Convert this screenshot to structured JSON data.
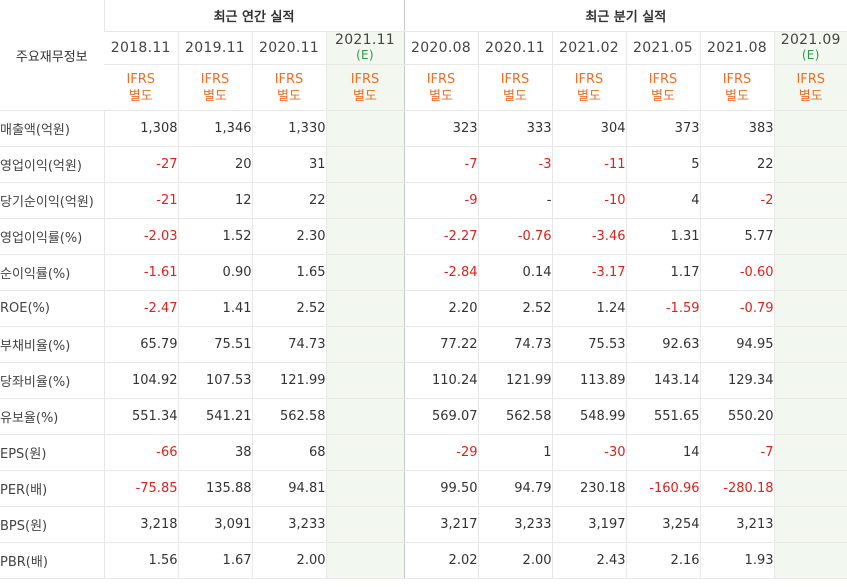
{
  "header": {
    "row_head": "주요재무정보",
    "annual_group": "최근 연간 실적",
    "quarter_group": "최근 분기 실적",
    "ifrs_line1": "IFRS",
    "ifrs_line2": "별도"
  },
  "columns": [
    {
      "period": "2018.11",
      "estimate": false
    },
    {
      "period": "2019.11",
      "estimate": false
    },
    {
      "period": "2020.11",
      "estimate": false
    },
    {
      "period": "2021.11",
      "estimate": true,
      "est_label": "(E)"
    },
    {
      "period": "2020.08",
      "estimate": false
    },
    {
      "period": "2020.11",
      "estimate": false
    },
    {
      "period": "2021.02",
      "estimate": false
    },
    {
      "period": "2021.05",
      "estimate": false
    },
    {
      "period": "2021.08",
      "estimate": false
    },
    {
      "period": "2021.09",
      "estimate": true,
      "est_label": "(E)"
    }
  ],
  "rows": [
    {
      "label": "매출액(억원)",
      "values": [
        "1,308",
        "1,346",
        "1,330",
        "",
        "323",
        "333",
        "304",
        "373",
        "383",
        ""
      ]
    },
    {
      "label": "영업이익(억원)",
      "values": [
        "-27",
        "20",
        "31",
        "",
        "-7",
        "-3",
        "-11",
        "5",
        "22",
        ""
      ]
    },
    {
      "label": "당기순이익(억원)",
      "values": [
        "-21",
        "12",
        "22",
        "",
        "-9",
        "-",
        "-10",
        "4",
        "-2",
        ""
      ]
    },
    {
      "label": "영업이익률(%)",
      "values": [
        "-2.03",
        "1.52",
        "2.30",
        "",
        "-2.27",
        "-0.76",
        "-3.46",
        "1.31",
        "5.77",
        ""
      ]
    },
    {
      "label": "순이익률(%)",
      "values": [
        "-1.61",
        "0.90",
        "1.65",
        "",
        "-2.84",
        "0.14",
        "-3.17",
        "1.17",
        "-0.60",
        ""
      ]
    },
    {
      "label": "ROE(%)",
      "values": [
        "-2.47",
        "1.41",
        "2.52",
        "",
        "2.20",
        "2.52",
        "1.24",
        "-1.59",
        "-0.79",
        ""
      ]
    },
    {
      "label": "부채비율(%)",
      "values": [
        "65.79",
        "75.51",
        "74.73",
        "",
        "77.22",
        "74.73",
        "75.53",
        "92.63",
        "94.95",
        ""
      ]
    },
    {
      "label": "당좌비율(%)",
      "values": [
        "104.92",
        "107.53",
        "121.99",
        "",
        "110.24",
        "121.99",
        "113.89",
        "143.14",
        "129.34",
        ""
      ]
    },
    {
      "label": "유보율(%)",
      "values": [
        "551.34",
        "541.21",
        "562.58",
        "",
        "569.07",
        "562.58",
        "548.99",
        "551.65",
        "550.20",
        ""
      ]
    },
    {
      "label": "EPS(원)",
      "values": [
        "-66",
        "38",
        "68",
        "",
        "-29",
        "1",
        "-30",
        "14",
        "-7",
        ""
      ]
    },
    {
      "label": "PER(배)",
      "values": [
        "-75.85",
        "135.88",
        "94.81",
        "",
        "99.50",
        "94.79",
        "230.18",
        "-160.96",
        "-280.18",
        ""
      ]
    },
    {
      "label": "BPS(원)",
      "values": [
        "3,218",
        "3,091",
        "3,233",
        "",
        "3,217",
        "3,233",
        "3,197",
        "3,254",
        "3,213",
        ""
      ]
    },
    {
      "label": "PBR(배)",
      "values": [
        "1.56",
        "1.67",
        "2.00",
        "",
        "2.02",
        "2.00",
        "2.43",
        "2.16",
        "1.93",
        ""
      ]
    }
  ],
  "colors": {
    "negative": "#e0201b",
    "ifrs": "#f26c21",
    "estimate_bg": "#f2f8ef",
    "estimate_text": "#2f9a4b"
  }
}
